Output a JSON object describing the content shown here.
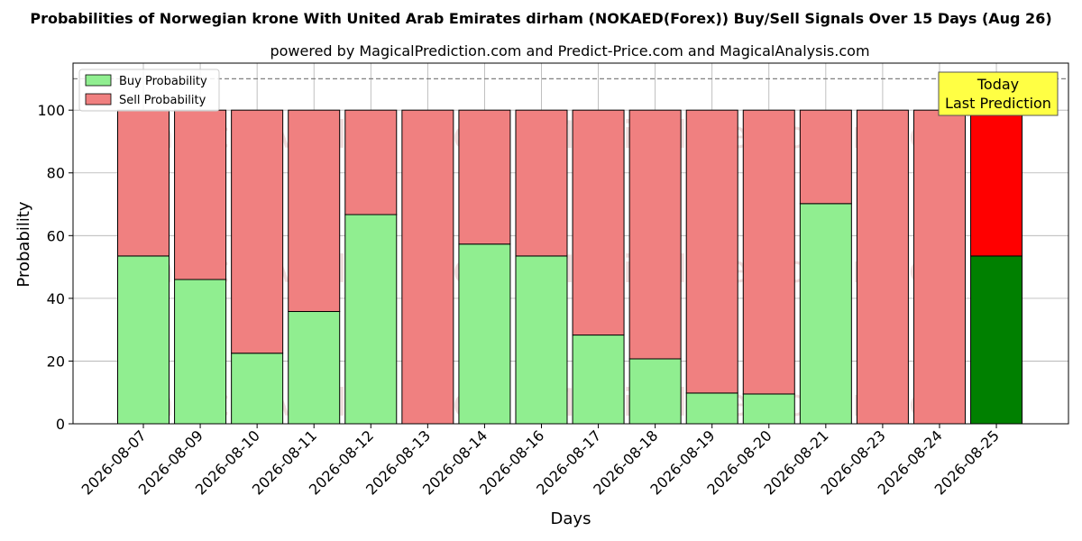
{
  "chart_data": {
    "type": "bar",
    "title": "Probabilities of Norwegian krone With United Arab Emirates dirham (NOKAED(Forex)) Buy/Sell Signals Over 15 Days (Aug 26)",
    "subtitle": "powered by MagicalPrediction.com and Predict-Price.com and MagicalAnalysis.com",
    "xlabel": "Days",
    "ylabel": "Probability",
    "ylim": [
      0,
      115
    ],
    "yticks": [
      0,
      20,
      40,
      60,
      80,
      100
    ],
    "reference_line": 110,
    "grid": true,
    "legend_position": "top-left",
    "categories": [
      "2026-08-07",
      "2026-08-09",
      "2026-08-10",
      "2026-08-11",
      "2026-08-12",
      "2026-08-13",
      "2026-08-14",
      "2026-08-16",
      "2026-08-17",
      "2026-08-18",
      "2026-08-19",
      "2026-08-20",
      "2026-08-21",
      "2026-08-23",
      "2026-08-24",
      "2026-08-25"
    ],
    "series": [
      {
        "name": "Buy Probability",
        "values": [
          53.5,
          46,
          22.5,
          35.8,
          66.7,
          0,
          57.3,
          53.5,
          28.3,
          20.7,
          9.8,
          9.5,
          70.2,
          0,
          0,
          53.5
        ]
      },
      {
        "name": "Sell Probability",
        "values": [
          46.5,
          54,
          77.5,
          64.2,
          33.3,
          100,
          42.7,
          46.5,
          71.7,
          79.3,
          90.2,
          90.5,
          29.8,
          100,
          100,
          46.5
        ]
      }
    ],
    "annotation": {
      "line1": "Today",
      "line2": "Last Prediction"
    },
    "watermarks": [
      "MagicalAnalysis.com",
      "MagicalPrediction.com"
    ]
  },
  "colors": {
    "buy": "#90ee90",
    "sell": "#f08080",
    "buy_highlight": "#008000",
    "sell_highlight": "#ff0000",
    "annotation_bg": "#ffff44"
  }
}
